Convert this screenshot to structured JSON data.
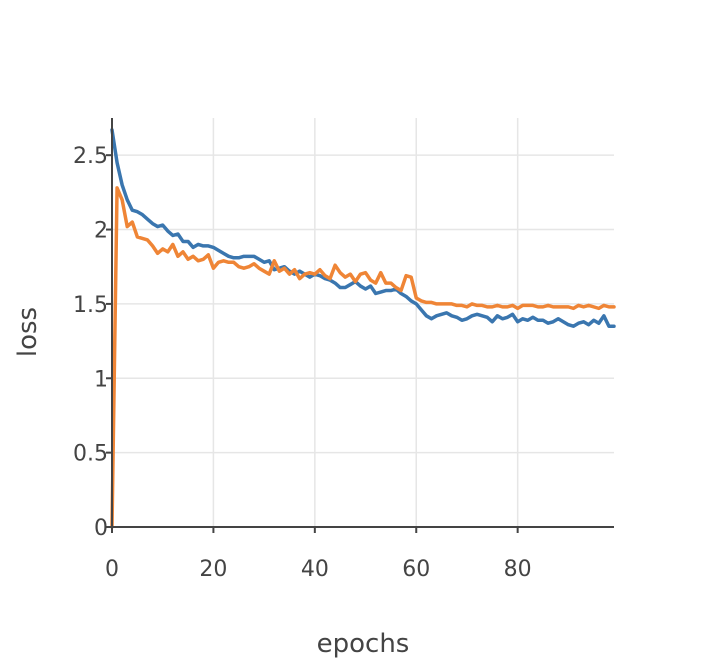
{
  "chart_data": {
    "type": "line",
    "xlabel": "epochs",
    "ylabel": "loss",
    "xlim": [
      0,
      99
    ],
    "ylim": [
      0,
      2.75
    ],
    "xticks": [
      0,
      20,
      40,
      60,
      80
    ],
    "yticks": [
      0,
      0.5,
      1,
      1.5,
      2,
      2.5
    ],
    "ytick_labels": [
      "0",
      "0.5",
      "1",
      "1.5",
      "2",
      "2.5"
    ],
    "grid": true,
    "colors": {
      "series_a": "#3a76af",
      "series_b": "#ef8536"
    },
    "series": [
      {
        "values": [
          2.67,
          2.45,
          2.3,
          2.2,
          2.13,
          2.12,
          2.1,
          2.07,
          2.04,
          2.02,
          2.03,
          1.99,
          1.96,
          1.97,
          1.92,
          1.92,
          1.88,
          1.9,
          1.89,
          1.89,
          1.88,
          1.86,
          1.84,
          1.82,
          1.81,
          1.81,
          1.82,
          1.82,
          1.82,
          1.8,
          1.78,
          1.79,
          1.73,
          1.74,
          1.75,
          1.72,
          1.7,
          1.72,
          1.7,
          1.68,
          1.7,
          1.69,
          1.67,
          1.66,
          1.64,
          1.61,
          1.61,
          1.63,
          1.65,
          1.62,
          1.6,
          1.62,
          1.57,
          1.58,
          1.59,
          1.59,
          1.6,
          1.57,
          1.55,
          1.52,
          1.5,
          1.46,
          1.42,
          1.4,
          1.42,
          1.43,
          1.44,
          1.42,
          1.41,
          1.39,
          1.4,
          1.42,
          1.43,
          1.42,
          1.41,
          1.38,
          1.42,
          1.4,
          1.41,
          1.43,
          1.38,
          1.4,
          1.39,
          1.41,
          1.39,
          1.39,
          1.37,
          1.38,
          1.4,
          1.38,
          1.36,
          1.35,
          1.37,
          1.38,
          1.36,
          1.39,
          1.37,
          1.42,
          1.35,
          1.35
        ]
      },
      {
        "values": [
          0.0,
          2.28,
          2.2,
          2.02,
          2.05,
          1.95,
          1.94,
          1.93,
          1.89,
          1.84,
          1.87,
          1.85,
          1.9,
          1.82,
          1.85,
          1.8,
          1.82,
          1.79,
          1.8,
          1.83,
          1.74,
          1.78,
          1.79,
          1.78,
          1.78,
          1.75,
          1.74,
          1.75,
          1.77,
          1.74,
          1.72,
          1.7,
          1.79,
          1.72,
          1.74,
          1.7,
          1.73,
          1.67,
          1.7,
          1.71,
          1.7,
          1.73,
          1.69,
          1.67,
          1.76,
          1.71,
          1.68,
          1.7,
          1.65,
          1.7,
          1.71,
          1.66,
          1.64,
          1.71,
          1.64,
          1.64,
          1.61,
          1.59,
          1.69,
          1.68,
          1.54,
          1.52,
          1.51,
          1.51,
          1.5,
          1.5,
          1.5,
          1.5,
          1.49,
          1.49,
          1.48,
          1.5,
          1.49,
          1.49,
          1.48,
          1.48,
          1.49,
          1.48,
          1.48,
          1.49,
          1.47,
          1.49,
          1.49,
          1.49,
          1.48,
          1.48,
          1.49,
          1.48,
          1.48,
          1.48,
          1.48,
          1.47,
          1.49,
          1.48,
          1.49,
          1.48,
          1.47,
          1.49,
          1.48,
          1.48
        ]
      }
    ]
  }
}
